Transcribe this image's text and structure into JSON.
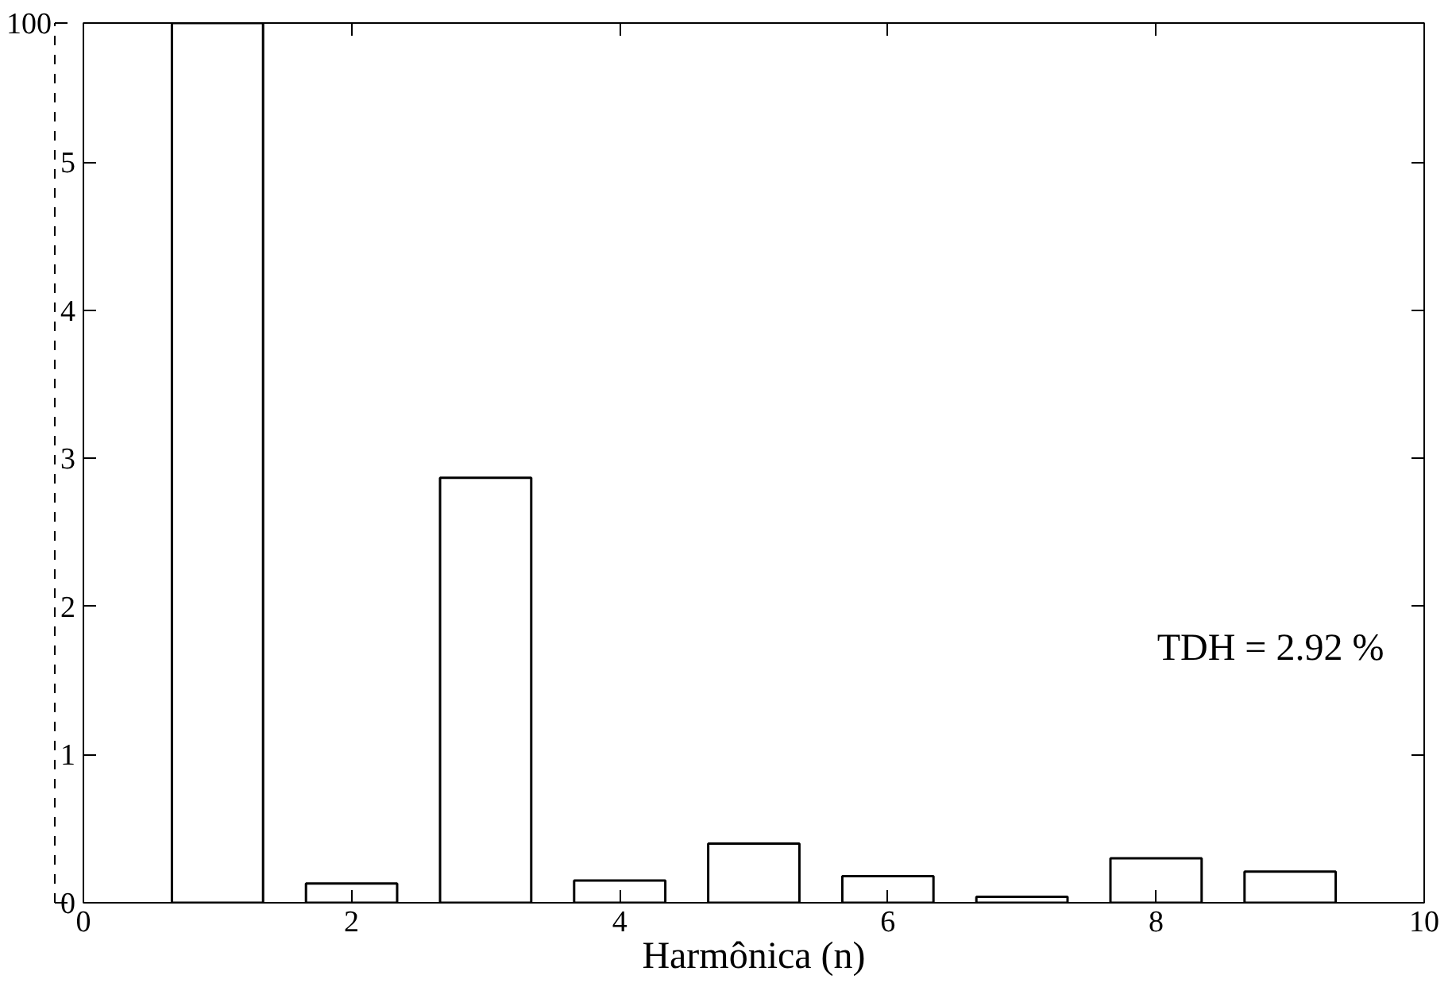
{
  "chart_data": {
    "type": "bar",
    "xlabel": "Harmônica (n)",
    "x": [
      1,
      2,
      3,
      4,
      5,
      6,
      7,
      8,
      9
    ],
    "series": [
      {
        "color": "#ffffff",
        "values": [
          null,
          0.13,
          2.87,
          0.15,
          0.4,
          0.18,
          0.04,
          0.3,
          0.21
        ]
      },
      {
        "color": "#ffffff",
        "axis": "y2",
        "values": [
          100,
          null,
          null,
          null,
          null,
          null,
          null,
          null,
          null
        ]
      }
    ],
    "xlim": [
      0,
      10
    ],
    "xticks": [
      0,
      2,
      4,
      6,
      8,
      10
    ],
    "ylim": [
      0,
      5.94
    ],
    "yticks": [
      0,
      1,
      2,
      3,
      4,
      5
    ],
    "y2lim": [
      0,
      100
    ],
    "y2ticks": [
      {
        "value": 0,
        "label": null
      },
      100
    ],
    "grid": false,
    "annotations": [
      "TDH = 2.92 %"
    ]
  }
}
